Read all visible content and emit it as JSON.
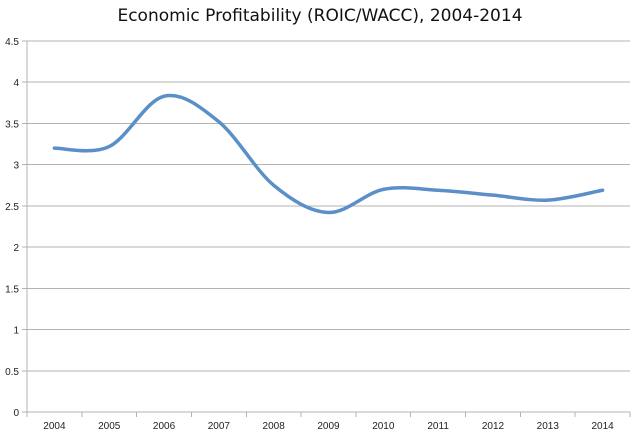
{
  "chart_data": {
    "type": "line",
    "title": "Economic Profitability (ROIC/WACC), 2004-2014",
    "xlabel": "",
    "ylabel": "",
    "categories": [
      "2004",
      "2005",
      "2006",
      "2007",
      "2008",
      "2009",
      "2010",
      "2011",
      "2012",
      "2013",
      "2014"
    ],
    "series": [
      {
        "values": [
          3.2,
          3.22,
          3.83,
          3.52,
          2.75,
          2.42,
          2.7,
          2.69,
          2.63,
          2.57,
          2.69
        ],
        "color": "#5b8fc7"
      }
    ],
    "ylim": [
      0,
      4.5
    ],
    "yticks": [
      "0",
      "0.5",
      "1",
      "1.5",
      "2",
      "2.5",
      "3",
      "3.5",
      "4",
      "4.5"
    ],
    "grid": true,
    "smooth": true,
    "legend": "none",
    "colors": {
      "grid": "#b3b3b3",
      "line": "#5b8fc7"
    }
  }
}
